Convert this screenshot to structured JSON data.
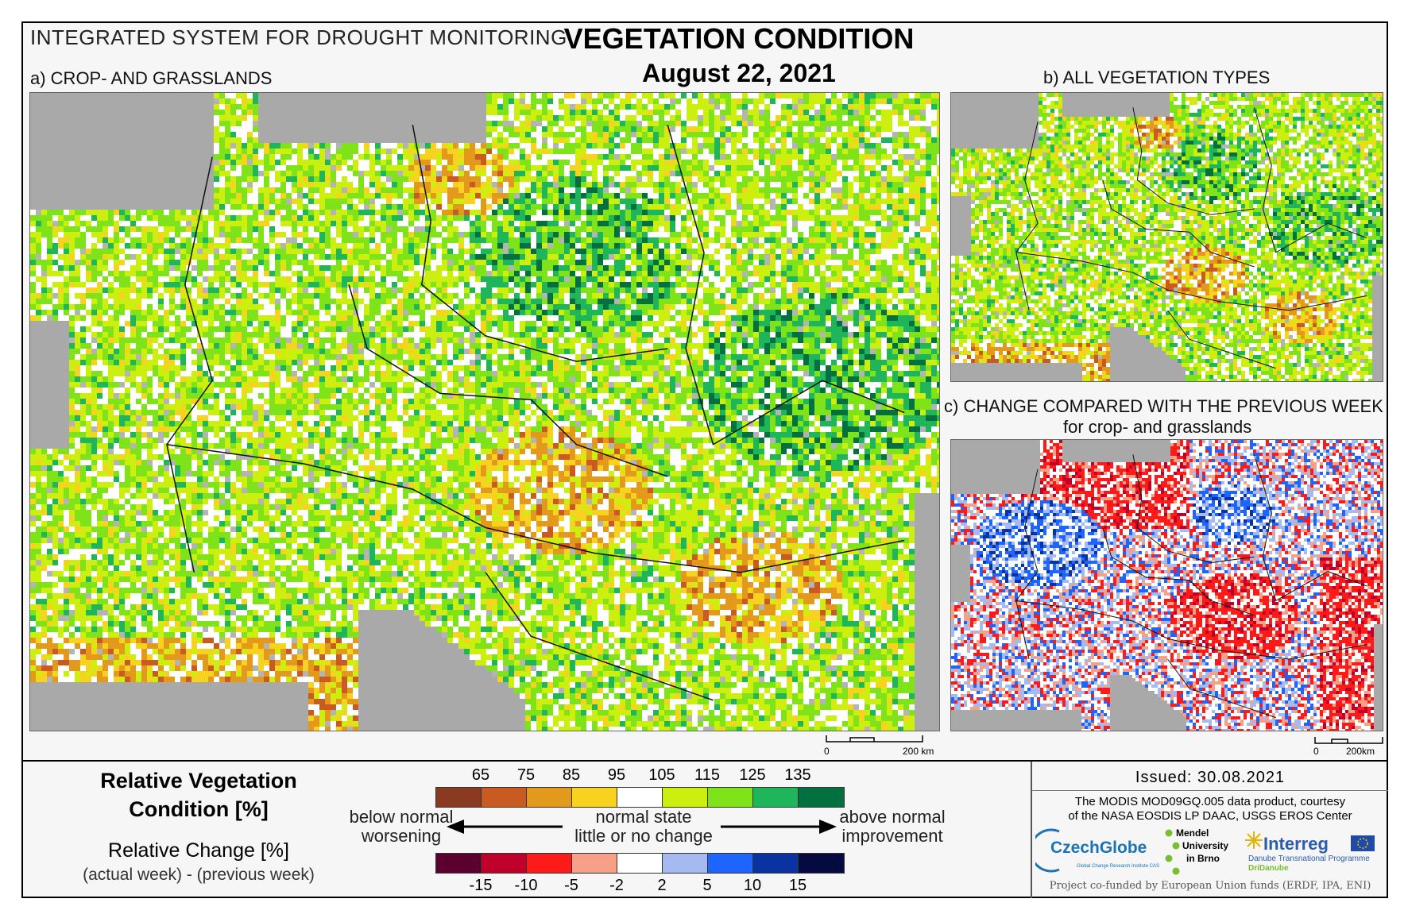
{
  "header": {
    "system_name": "INTEGRATED SYSTEM FOR DROUGHT MONITORING",
    "title": "VEGETATION CONDITION",
    "date": "August 22, 2021"
  },
  "panels": {
    "a": {
      "label": "a) CROP- AND GRASSLANDS",
      "scale_zero": "0",
      "scale_km": "200 km"
    },
    "b": {
      "label": "b) ALL VEGETATION TYPES",
      "scale_zero": "0",
      "scale_km": "200km"
    },
    "c": {
      "label": "c) CHANGE COMPARED WITH THE PREVIOUS WEEK",
      "sublabel": "for crop- and grasslands",
      "scale_zero": "0",
      "scale_km": "200km"
    }
  },
  "legend": {
    "rvc_title_line1": "Relative Vegetation",
    "rvc_title_line2": "Condition [%]",
    "rc_title": "Relative Change [%]",
    "rc_formula": "(actual week) - (previous week)",
    "rvc_ticks": [
      "65",
      "75",
      "85",
      "95",
      "105",
      "115",
      "125",
      "135"
    ],
    "rvc_colors": [
      "#8b3a22",
      "#c85a22",
      "#e39a1c",
      "#f7d21e",
      "#ffffff",
      "#cdef10",
      "#7fe31a",
      "#1fb55a",
      "#047040"
    ],
    "rc_ticks": [
      "-15",
      "-10",
      "-5",
      "-2",
      "2",
      "5",
      "10",
      "15"
    ],
    "rc_colors": [
      "#5c0030",
      "#c0002a",
      "#ff1a1a",
      "#f7a088",
      "#ffffff",
      "#a6baf2",
      "#1e64ff",
      "#0a32a0",
      "#050a40"
    ],
    "left_label_top": "below normal",
    "left_label_bottom": "worsening",
    "center_label_top": "normal state",
    "center_label_bottom": "little or no change",
    "right_label_top": "above normal",
    "right_label_bottom": "improvement"
  },
  "footer": {
    "issued": "Issued: 30.08.2021",
    "credit_line1": "The MODIS MOD09GQ.005 data product, courtesy",
    "credit_line2": "of the NASA EOSDIS LP DAAC, USGS EROS Center",
    "logo_czechglobe": "CzechGlobe",
    "logo_czechglobe_sub": "Global Change Research Institute CAS",
    "logo_mendel_1": "Mendel",
    "logo_mendel_2": "University",
    "logo_mendel_3": "in Brno",
    "logo_interreg": "Interreg",
    "logo_interreg_sub1": "Danube Transnational Programme",
    "logo_interreg_sub2": "DriDanube",
    "cofunded": "Project co-funded by European Union funds (ERDF, IPA, ENI)"
  }
}
